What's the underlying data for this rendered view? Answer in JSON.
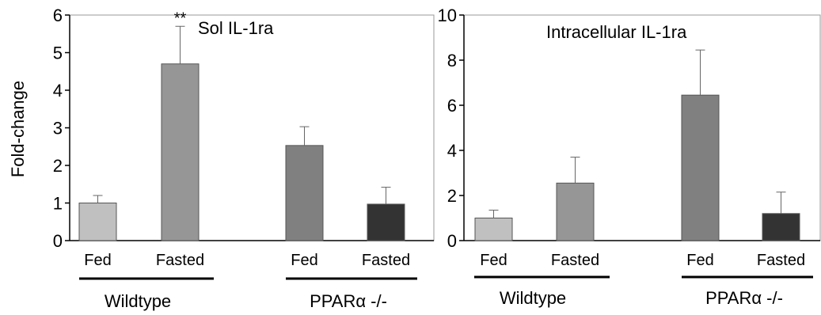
{
  "ylabel": "Fold-change",
  "colors": {
    "wildtype_fed": "#c0c0c0",
    "wildtype_fasted": "#969696",
    "ppar_fed": "#808080",
    "ppar_fasted": "#333333",
    "bar_stroke": "#555555",
    "axis": "#999999"
  },
  "chart_data": [
    {
      "type": "bar",
      "title": "Sol IL-1ra",
      "ylabel": "Fold-change",
      "ylim": [
        0,
        6
      ],
      "yticks": [
        "0",
        "1",
        "2",
        "3",
        "4",
        "5",
        "6"
      ],
      "categories": [
        "Fed",
        "Fasted",
        "Fed",
        "Fasted"
      ],
      "groups": [
        {
          "label": "Wildtype",
          "categories": [
            "Fed",
            "Fasted"
          ]
        },
        {
          "label": "PPARα -/-",
          "categories": [
            "Fed",
            "Fasted"
          ]
        }
      ],
      "values": [
        1.0,
        4.7,
        2.53,
        0.97
      ],
      "errors": [
        0.2,
        1.0,
        0.5,
        0.45
      ],
      "annotations": [
        {
          "text": "**",
          "category_index": 1
        }
      ],
      "grid": false
    },
    {
      "type": "bar",
      "title": "Intracellular IL-1ra",
      "ylim": [
        0,
        10
      ],
      "yticks": [
        "0",
        "2",
        "4",
        "6",
        "8",
        "10"
      ],
      "categories": [
        "Fed",
        "Fasted",
        "Fed",
        "Fasted"
      ],
      "groups": [
        {
          "label": "Wildtype",
          "categories": [
            "Fed",
            "Fasted"
          ]
        },
        {
          "label": "PPARα -/-",
          "categories": [
            "Fed",
            "Fasted"
          ]
        }
      ],
      "values": [
        1.0,
        2.55,
        6.45,
        1.2
      ],
      "errors": [
        0.35,
        1.15,
        2.0,
        0.95
      ],
      "annotations": [],
      "grid": false
    }
  ]
}
